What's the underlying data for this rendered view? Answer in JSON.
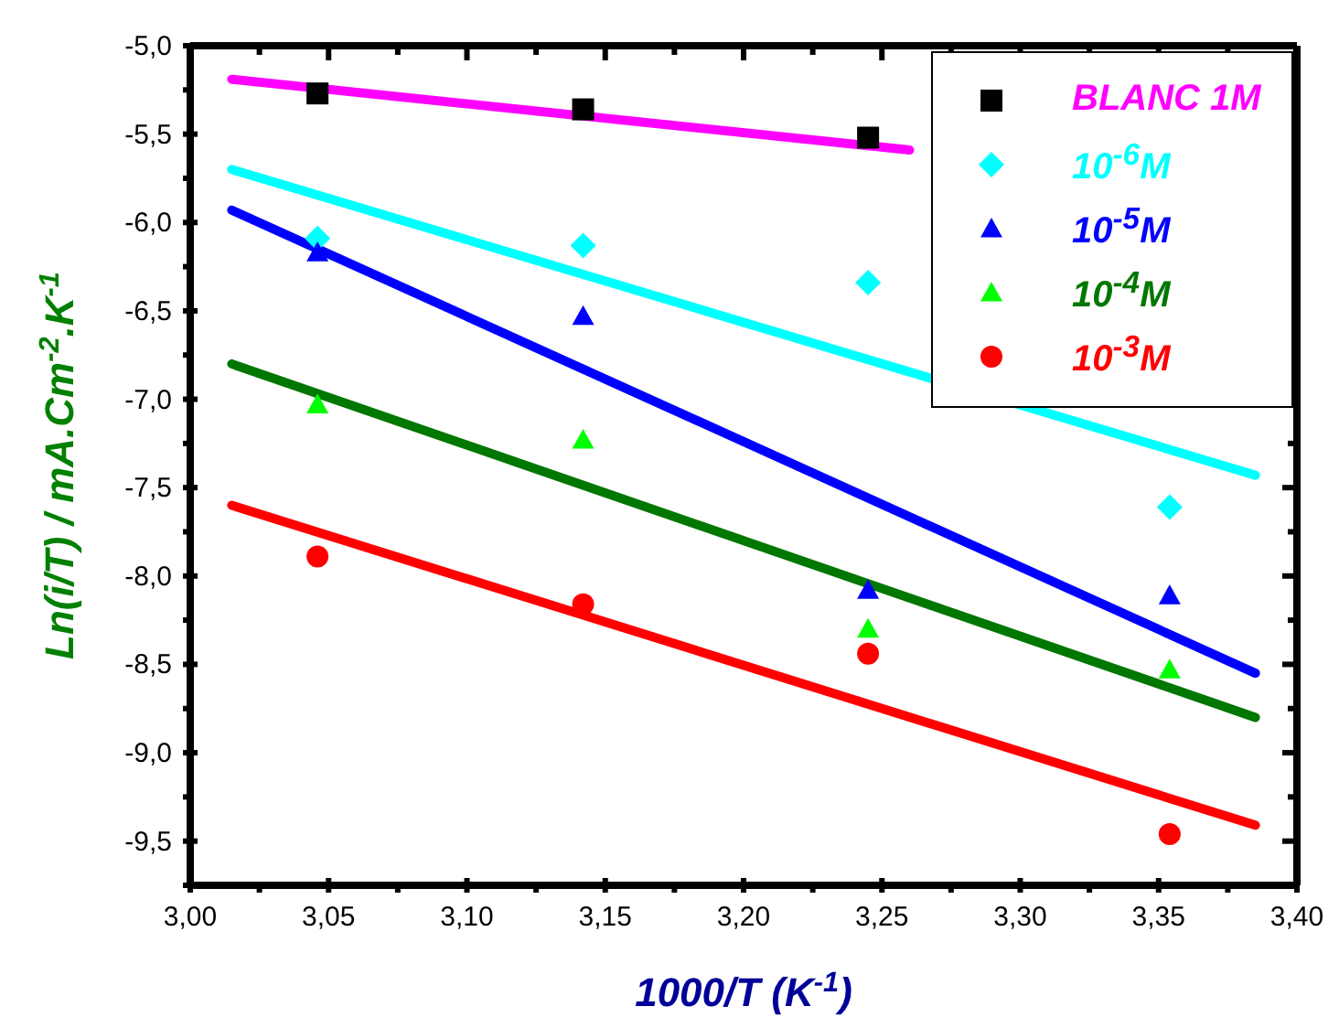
{
  "chart_data": {
    "type": "scatter",
    "xlabel": "1000/T (K$^{-1}$)",
    "ylabel": "Ln(i/T) / mA.Cm$^{-2}$.K$^{-1}$",
    "x": [
      3.046,
      3.142,
      3.245,
      3.354
    ],
    "xlim": [
      3.0,
      3.4
    ],
    "ylim": [
      -9.75,
      -5.0
    ],
    "xticks": [
      {
        "value": 3.0,
        "label": "3,00"
      },
      {
        "value": 3.025,
        "label": null
      },
      {
        "value": 3.05,
        "label": "3,05"
      },
      {
        "value": 3.075,
        "label": null
      },
      {
        "value": 3.1,
        "label": "3,10"
      },
      {
        "value": 3.125,
        "label": null
      },
      {
        "value": 3.15,
        "label": "3,15"
      },
      {
        "value": 3.175,
        "label": null
      },
      {
        "value": 3.2,
        "label": "3,20"
      },
      {
        "value": 3.225,
        "label": null
      },
      {
        "value": 3.25,
        "label": "3,25"
      },
      {
        "value": 3.275,
        "label": null
      },
      {
        "value": 3.3,
        "label": "3,30"
      },
      {
        "value": 3.325,
        "label": null
      },
      {
        "value": 3.35,
        "label": "3,35"
      },
      {
        "value": 3.375,
        "label": null
      },
      {
        "value": 3.4,
        "label": "3,40"
      }
    ],
    "yticks": [
      {
        "value": -5.0,
        "label": "-5,0"
      },
      {
        "value": -5.25,
        "label": null
      },
      {
        "value": -5.5,
        "label": "-5,5"
      },
      {
        "value": -5.75,
        "label": null
      },
      {
        "value": -6.0,
        "label": "-6,0"
      },
      {
        "value": -6.25,
        "label": null
      },
      {
        "value": -6.5,
        "label": "-6,5"
      },
      {
        "value": -6.75,
        "label": null
      },
      {
        "value": -7.0,
        "label": "-7,0"
      },
      {
        "value": -7.25,
        "label": null
      },
      {
        "value": -7.5,
        "label": "-7,5"
      },
      {
        "value": -7.75,
        "label": null
      },
      {
        "value": -8.0,
        "label": "-8,0"
      },
      {
        "value": -8.25,
        "label": null
      },
      {
        "value": -8.5,
        "label": "-8,5"
      },
      {
        "value": -8.75,
        "label": null
      },
      {
        "value": -9.0,
        "label": "-9,0"
      },
      {
        "value": -9.25,
        "label": null
      },
      {
        "value": -9.5,
        "label": "-9,5"
      },
      {
        "value": -9.75,
        "label": null
      }
    ],
    "grid": false,
    "legend": "top right",
    "series": [
      {
        "name": "BLANC 1M",
        "color": "#000000",
        "marker": "square",
        "values": [
          -5.27,
          -5.36,
          -5.52,
          null
        ]
      },
      {
        "name": "10$^{-6}$M",
        "color": "#00ffff",
        "marker": "diamond",
        "values": [
          -6.09,
          -6.13,
          -6.34,
          -7.61
        ]
      },
      {
        "name": "10$^{-5}$M",
        "color": "#0000ff",
        "marker": "triangle",
        "values": [
          -6.17,
          -6.53,
          -8.08,
          -8.11
        ]
      },
      {
        "name": "10$^{-4}$M",
        "color": "#00ff00",
        "marker": "triangle",
        "values": [
          -7.03,
          -7.23,
          -8.3,
          -8.53
        ]
      },
      {
        "name": "10$^{-3}$M",
        "color": "#ff0000",
        "marker": "circle",
        "values": [
          -7.89,
          -8.16,
          -8.44,
          -9.46
        ]
      },
      {
        "type": "line",
        "color": "#ff00ff",
        "x": [
          3.015,
          3.26
        ],
        "values": [
          -5.19,
          -5.59
        ]
      },
      {
        "type": "line",
        "color": "#00ffff",
        "x": [
          3.015,
          3.385
        ],
        "values": [
          -5.7,
          -7.43
        ]
      },
      {
        "type": "line",
        "color": "#0000ff",
        "x": [
          3.015,
          3.385
        ],
        "values": [
          -5.93,
          -8.55
        ]
      },
      {
        "type": "line",
        "color": "#007700",
        "x": [
          3.015,
          3.385
        ],
        "values": [
          -6.8,
          -8.8
        ]
      },
      {
        "type": "line",
        "color": "#ff0000",
        "x": [
          3.015,
          3.385
        ],
        "values": [
          -7.6,
          -9.41
        ]
      }
    ]
  }
}
